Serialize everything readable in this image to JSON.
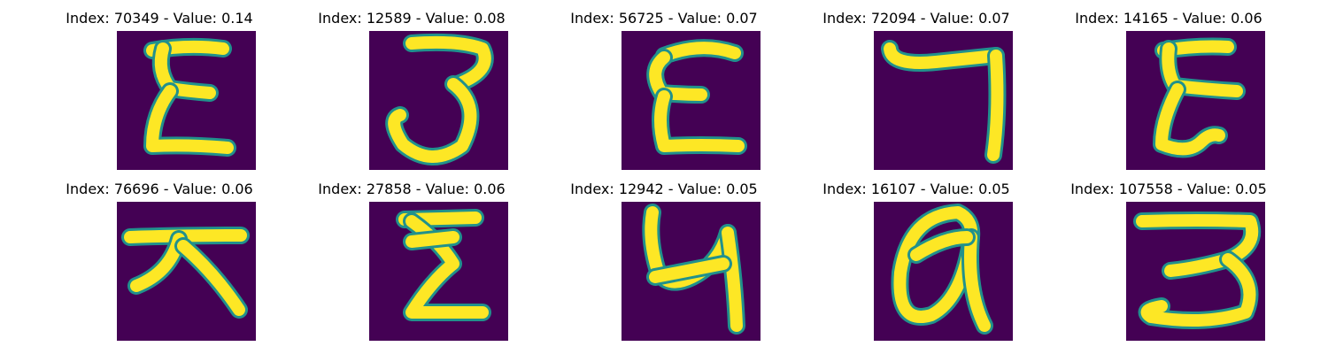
{
  "chart_data": {
    "type": "image_grid",
    "rows": 2,
    "cols": 5,
    "colormap": "viridis",
    "background_color": "#440154",
    "stroke_color": "#fde725",
    "edge_color": "#21918c",
    "axes": "off",
    "panels": [
      {
        "title": "Index: 70349 - Value: 0.14",
        "index": 70349,
        "value": 0.14,
        "glyph": "E"
      },
      {
        "title": "Index: 12589 - Value: 0.08",
        "index": 12589,
        "value": 0.08,
        "glyph": "3"
      },
      {
        "title": "Index: 56725 - Value: 0.07",
        "index": 56725,
        "value": 0.07,
        "glyph": "E"
      },
      {
        "title": "Index: 72094 - Value: 0.07",
        "index": 72094,
        "value": 0.07,
        "glyph": "7"
      },
      {
        "title": "Index: 14165 - Value: 0.06",
        "index": 14165,
        "value": 0.06,
        "glyph": "E"
      },
      {
        "title": "Index: 76696 - Value: 0.06",
        "index": 76696,
        "value": 0.06,
        "glyph": "大"
      },
      {
        "title": "Index: 27858 - Value: 0.06",
        "index": 27858,
        "value": 0.06,
        "glyph": "Σ"
      },
      {
        "title": "Index: 12942 - Value: 0.05",
        "index": 12942,
        "value": 0.05,
        "glyph": "4"
      },
      {
        "title": "Index: 16107 - Value: 0.05",
        "index": 16107,
        "value": 0.05,
        "glyph": "a"
      },
      {
        "title": "Index: 107558 - Value: 0.05",
        "index": 107558,
        "value": 0.05,
        "glyph": "3"
      }
    ]
  }
}
